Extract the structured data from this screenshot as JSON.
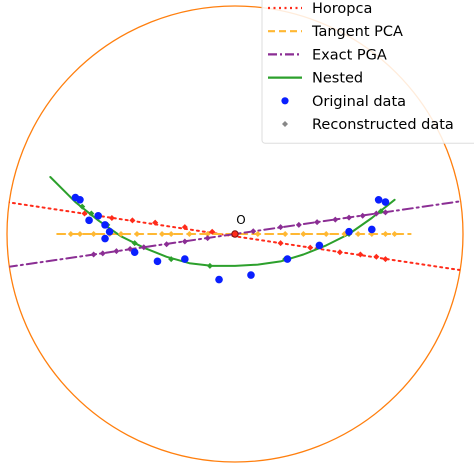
{
  "chart_data": {
    "type": "scatter",
    "title": "",
    "xlabel": "",
    "ylabel": "",
    "grid": false,
    "xlim": [
      -1.03,
      1.03
    ],
    "ylim": [
      -1.03,
      1.03
    ],
    "boundary": {
      "shape": "unit-circle",
      "color": "#ff7f0e"
    },
    "origin": {
      "label": "O",
      "x": 0.0,
      "y": 0.0
    },
    "legend": {
      "placement": "top-right",
      "entries": [
        {
          "label": "Horopca",
          "style": "dotted-line",
          "color": "#ff2b1a"
        },
        {
          "label": "Tangent PCA",
          "style": "dashed-line",
          "color": "#ffb833"
        },
        {
          "label": "Exact PGA",
          "style": "dashdot-line",
          "color": "#8b2e94"
        },
        {
          "label": "Nested",
          "style": "solid-line",
          "color": "#2ca02c"
        },
        {
          "label": "Original data",
          "style": "marker-circle",
          "color": "#0a1fff"
        },
        {
          "label": "Reconstructed data",
          "style": "marker-diamond",
          "color": "#888888"
        }
      ]
    },
    "series": [
      {
        "name": "Horopca",
        "kind": "line",
        "color": "#ff2b1a",
        "dash": "2 4",
        "line": [
          [
            -1.0,
            0.14
          ],
          [
            1.0,
            -0.16
          ]
        ],
        "recon": [
          [
            -0.66,
            0.09
          ],
          [
            -0.6,
            0.08
          ],
          [
            -0.54,
            0.07
          ],
          [
            -0.45,
            0.06
          ],
          [
            -0.35,
            0.05
          ],
          [
            -0.22,
            0.03
          ],
          [
            -0.1,
            0.01
          ],
          [
            0.2,
            -0.04
          ],
          [
            0.33,
            -0.06
          ],
          [
            0.46,
            -0.08
          ],
          [
            0.55,
            -0.09
          ],
          [
            0.62,
            -0.1
          ],
          [
            0.66,
            -0.11
          ]
        ]
      },
      {
        "name": "Tangent PCA",
        "kind": "line",
        "color": "#ffb833",
        "dash": "8 5",
        "line": [
          [
            -0.78,
            0.0
          ],
          [
            0.77,
            0.0
          ]
        ],
        "recon": [
          [
            -0.72,
            0.0
          ],
          [
            -0.68,
            0.0
          ],
          [
            -0.62,
            0.0
          ],
          [
            -0.55,
            0.0
          ],
          [
            -0.5,
            0.0
          ],
          [
            -0.43,
            0.0
          ],
          [
            -0.32,
            0.0
          ],
          [
            -0.28,
            0.0
          ],
          [
            -0.2,
            0.0
          ],
          [
            -0.12,
            0.0
          ],
          [
            0.1,
            0.0
          ],
          [
            0.22,
            0.0
          ],
          [
            0.3,
            0.0
          ],
          [
            0.4,
            0.0
          ],
          [
            0.48,
            0.0
          ],
          [
            0.54,
            0.0
          ],
          [
            0.6,
            0.0
          ],
          [
            0.66,
            0.0
          ],
          [
            0.7,
            0.0
          ]
        ]
      },
      {
        "name": "Exact PGA",
        "kind": "line",
        "color": "#8b2e94",
        "dash": "10 4 2 4",
        "line": [
          [
            -1.0,
            -0.145
          ],
          [
            1.0,
            0.145
          ]
        ],
        "recon": [
          [
            -0.62,
            -0.09
          ],
          [
            -0.58,
            -0.085
          ],
          [
            -0.52,
            -0.075
          ],
          [
            -0.46,
            -0.066
          ],
          [
            -0.4,
            -0.058
          ],
          [
            -0.3,
            -0.045
          ],
          [
            -0.22,
            -0.033
          ],
          [
            -0.12,
            -0.018
          ],
          [
            0.08,
            0.012
          ],
          [
            0.2,
            0.03
          ],
          [
            0.28,
            0.04
          ],
          [
            0.36,
            0.052
          ],
          [
            0.44,
            0.063
          ],
          [
            0.5,
            0.072
          ],
          [
            0.56,
            0.08
          ],
          [
            0.62,
            0.09
          ],
          [
            0.66,
            0.095
          ]
        ]
      },
      {
        "name": "Nested",
        "kind": "curve",
        "color": "#2ca02c",
        "line": [
          [
            -0.81,
            0.25
          ],
          [
            -0.7,
            0.14
          ],
          [
            -0.6,
            0.06
          ],
          [
            -0.5,
            -0.01
          ],
          [
            -0.4,
            -0.06
          ],
          [
            -0.3,
            -0.1
          ],
          [
            -0.2,
            -0.128
          ],
          [
            -0.1,
            -0.14
          ],
          [
            0.0,
            -0.14
          ],
          [
            0.1,
            -0.134
          ],
          [
            0.2,
            -0.12
          ],
          [
            0.3,
            -0.09
          ],
          [
            0.4,
            -0.05
          ],
          [
            0.5,
            0.0
          ],
          [
            0.6,
            0.07
          ],
          [
            0.7,
            0.15
          ]
        ],
        "recon": [
          [
            -0.67,
            0.12
          ],
          [
            -0.63,
            0.09
          ],
          [
            -0.56,
            0.04
          ],
          [
            -0.44,
            -0.04
          ],
          [
            -0.28,
            -0.11
          ],
          [
            -0.11,
            -0.14
          ],
          [
            0.22,
            -0.11
          ],
          [
            0.5,
            0.0
          ],
          [
            0.64,
            0.1
          ]
        ]
      },
      {
        "name": "Original data",
        "kind": "points",
        "color": "#0a1fff",
        "points": [
          [
            -0.7,
            0.16
          ],
          [
            -0.68,
            0.15
          ],
          [
            -0.64,
            0.06
          ],
          [
            -0.6,
            0.08
          ],
          [
            -0.57,
            0.04
          ],
          [
            -0.55,
            0.01
          ],
          [
            -0.57,
            -0.02
          ],
          [
            -0.44,
            -0.08
          ],
          [
            -0.34,
            -0.12
          ],
          [
            -0.22,
            -0.11
          ],
          [
            -0.07,
            -0.2
          ],
          [
            0.07,
            -0.18
          ],
          [
            0.23,
            -0.11
          ],
          [
            0.37,
            -0.05
          ],
          [
            0.5,
            0.01
          ],
          [
            0.6,
            0.02
          ],
          [
            0.63,
            0.15
          ],
          [
            0.66,
            0.14
          ]
        ]
      }
    ]
  }
}
